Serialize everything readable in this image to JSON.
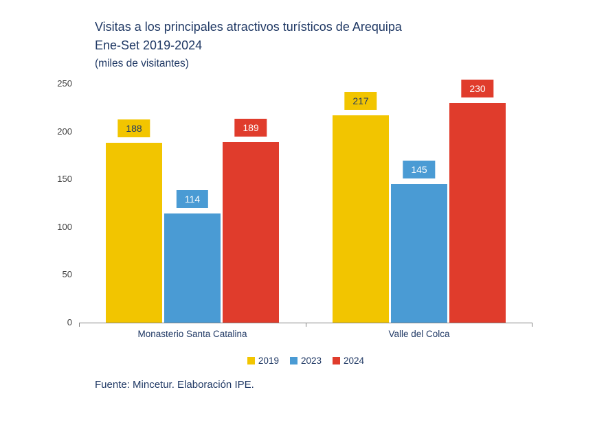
{
  "title": {
    "line1": "Visitas a los principales atractivos turísticos de Arequipa",
    "line2": "Ene-Set 2019-2024",
    "subtitle": "(miles de visitantes)"
  },
  "source": "Fuente: Mincetur. Elaboración IPE.",
  "colors": {
    "title_text": "#1F3864",
    "axis_text": "#404040",
    "axis_line": "#808080",
    "category_text": "#1F3864",
    "legend_text": "#1F3864"
  },
  "chart_data": {
    "type": "bar",
    "title": "Visitas a los principales atractivos turísticos de Arequipa Ene-Set 2019-2024 (miles de visitantes)",
    "categories": [
      "Monasterio Santa Catalina",
      "Valle del Colca"
    ],
    "series": [
      {
        "name": "2019",
        "color": "#F2C500",
        "label_text_color": "#1F3864",
        "values": [
          188,
          217
        ]
      },
      {
        "name": "2023",
        "color": "#4A9BD4",
        "label_text_color": "#FFFFFF",
        "values": [
          114,
          145
        ]
      },
      {
        "name": "2024",
        "color": "#E03C2C",
        "label_text_color": "#FFFFFF",
        "values": [
          189,
          230
        ]
      }
    ],
    "xlabel": "",
    "ylabel": "",
    "ylim": [
      0,
      250
    ],
    "yticks": [
      0,
      50,
      100,
      150,
      200,
      250
    ],
    "grid": false,
    "legend_position": "bottom",
    "data_labels": true
  }
}
